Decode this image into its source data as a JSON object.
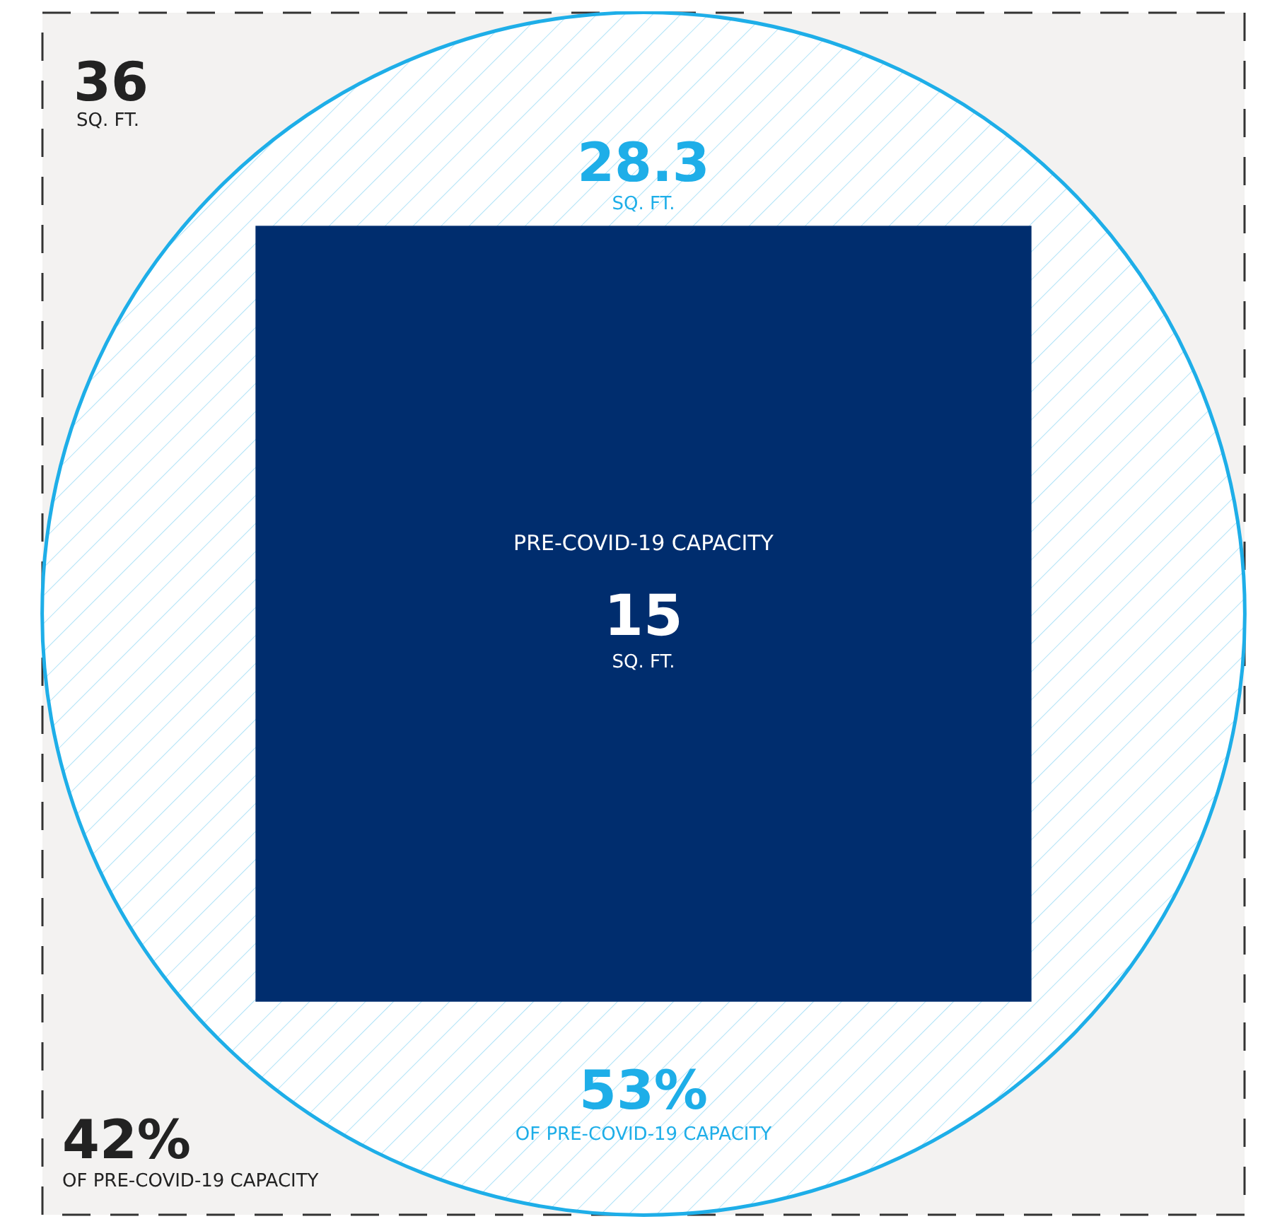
{
  "chart_data": {
    "type": "other",
    "categories": [
      null,
      null,
      "PRE-COVID-19 CAPACITY"
    ],
    "values": [
      36,
      28.3,
      15
    ],
    "colors": [
      "#f3f2f1",
      "#1eaee8",
      "#002d6e"
    ],
    "data_labels": true,
    "annotations": [
      "SQ. FT.",
      "42%",
      "OF PRE-COVID-19 CAPACITY",
      "SQ. FT.",
      "53%",
      "OF PRE-COVID-19 CAPACITY",
      "SQ. FT."
    ]
  }
}
